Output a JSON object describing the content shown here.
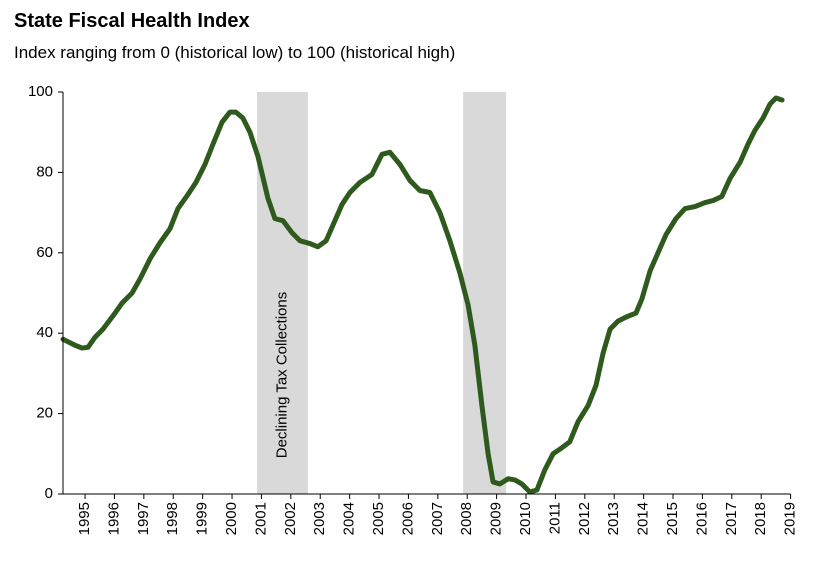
{
  "chart_data": {
    "type": "line",
    "title": "State Fiscal Health Index",
    "subtitle": "Index ranging from 0 (historical low) to 100 (historical high)",
    "x": [
      1994.25,
      1994.66,
      1994.9,
      1995.1,
      1995.34,
      1995.61,
      1996.02,
      1996.26,
      1996.6,
      1996.87,
      1997.21,
      1997.55,
      1997.89,
      1998.16,
      1998.5,
      1998.77,
      1999.08,
      1999.35,
      1999.66,
      1999.93,
      2000.13,
      2000.37,
      2000.61,
      2000.88,
      2001.22,
      2001.46,
      2001.73,
      2002.04,
      2002.31,
      2002.65,
      2002.92,
      2003.2,
      2003.47,
      2003.74,
      2004.01,
      2004.35,
      2004.76,
      2005.1,
      2005.37,
      2005.71,
      2006.05,
      2006.39,
      2006.73,
      2007.07,
      2007.41,
      2007.75,
      2008.03,
      2008.26,
      2008.5,
      2008.71,
      2008.88,
      2009.11,
      2009.39,
      2009.62,
      2009.86,
      2010.13,
      2010.37,
      2010.64,
      2010.92,
      2011.22,
      2011.49,
      2011.77,
      2012.11,
      2012.38,
      2012.62,
      2012.86,
      2013.13,
      2013.4,
      2013.74,
      2013.94,
      2014.22,
      2014.49,
      2014.76,
      2015.1,
      2015.41,
      2015.75,
      2016.09,
      2016.36,
      2016.66,
      2016.94,
      2017.28,
      2017.55,
      2017.79,
      2018.06,
      2018.3,
      2018.5,
      2018.71
    ],
    "series": [
      {
        "color": "#2f5a1d",
        "values": [
          38.5,
          37,
          36.3,
          36.5,
          39,
          41,
          45,
          47.5,
          50,
          53.5,
          58.5,
          62.5,
          66,
          71,
          74.5,
          77.5,
          82,
          87,
          92.5,
          95,
          95,
          93.5,
          90,
          84,
          73.6,
          68.5,
          68,
          65,
          63,
          62.3,
          61.5,
          63,
          67.5,
          72,
          75,
          77.5,
          79.5,
          84.5,
          85,
          82,
          78,
          75.5,
          75,
          70,
          63,
          55,
          47,
          37,
          22,
          10,
          3,
          2.5,
          3.8,
          3.5,
          2.5,
          0.5,
          1,
          6,
          10,
          11.5,
          13,
          18,
          22,
          27,
          35,
          41,
          43,
          44,
          45,
          48.5,
          55.5,
          60,
          64.5,
          68.5,
          71,
          71.5,
          72.5,
          73,
          74,
          78.5,
          82.5,
          87,
          90.5,
          93.5,
          97,
          98.5,
          98
        ]
      }
    ],
    "xlim": [
      1994.25,
      2019.0
    ],
    "xticks": [
      1995,
      1996,
      1997,
      1998,
      1999,
      2000,
      2001,
      2002,
      2003,
      2004,
      2005,
      2006,
      2007,
      2008,
      2009,
      2010,
      2011,
      2012,
      2013,
      2014,
      2015,
      2016,
      2017,
      2018,
      2019
    ],
    "ylim": [
      0,
      100
    ],
    "yticks": [
      0,
      20,
      40,
      60,
      80,
      100
    ],
    "grid": false,
    "shaded_regions": [
      {
        "x": [
          2000.85,
          2002.58
        ],
        "label": "Declining Tax Collections",
        "color": "#d9d9d9"
      },
      {
        "x": [
          2007.86,
          2009.32
        ],
        "color": "#d9d9d9"
      }
    ]
  }
}
